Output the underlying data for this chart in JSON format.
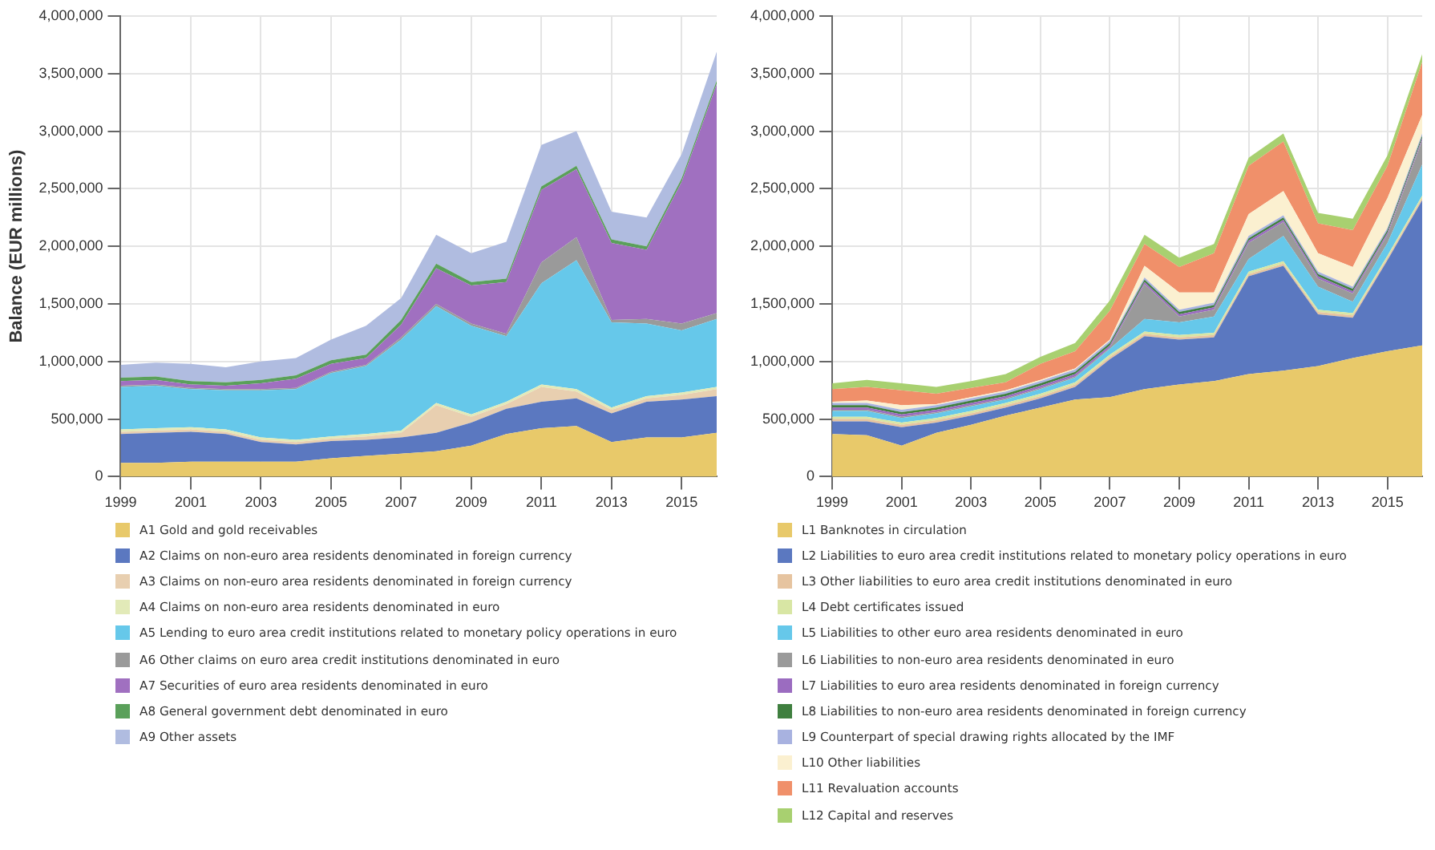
{
  "chart_data": [
    {
      "type": "area",
      "stacked": true,
      "ylabel": "Balance (EUR millions)",
      "x": [
        1999,
        2000,
        2001,
        2002,
        2003,
        2004,
        2005,
        2006,
        2007,
        2008,
        2009,
        2010,
        2011,
        2012,
        2013,
        2014,
        2015,
        2016
      ],
      "xlim": [
        1999,
        2016
      ],
      "xticks": [
        1999,
        2001,
        2003,
        2005,
        2007,
        2009,
        2011,
        2013,
        2015
      ],
      "ylim": [
        0,
        4000000
      ],
      "yticks": [
        {
          "value": 0,
          "label": "0"
        },
        {
          "value": 500000,
          "label": "500,000"
        },
        {
          "value": 1000000,
          "label": "1,000,000"
        },
        {
          "value": 1500000,
          "label": "1,500,000"
        },
        {
          "value": 2000000,
          "label": "2,000,000"
        },
        {
          "value": 2500000,
          "label": "2,500,000"
        },
        {
          "value": 3000000,
          "label": "3,000,000"
        },
        {
          "value": 3500000,
          "label": "3,500,000"
        },
        {
          "value": 4000000,
          "label": "4,000,000"
        }
      ],
      "grid": true,
      "legend": "bottom",
      "series": [
        {
          "name": "A1 Gold and gold receivables",
          "color": "#e8c96a",
          "values": [
            120000,
            120000,
            130000,
            130000,
            130000,
            130000,
            160000,
            180000,
            200000,
            220000,
            270000,
            370000,
            420000,
            440000,
            300000,
            340000,
            340000,
            380000
          ]
        },
        {
          "name": "A2 Claims on non-euro area residents denominated in foreign currency",
          "color": "#5b78c0",
          "values": [
            250000,
            260000,
            260000,
            240000,
            170000,
            150000,
            150000,
            140000,
            140000,
            160000,
            200000,
            220000,
            230000,
            240000,
            250000,
            310000,
            330000,
            320000
          ]
        },
        {
          "name": "A3 Claims on non-euro area residents denominated in foreign currency",
          "color": "#e8cfb0",
          "values": [
            20000,
            20000,
            20000,
            20000,
            20000,
            20000,
            20000,
            30000,
            40000,
            240000,
            50000,
            40000,
            130000,
            60000,
            30000,
            30000,
            40000,
            60000
          ]
        },
        {
          "name": "A4 Claims on non-euro area residents denominated in euro",
          "color": "#e2eab8",
          "values": [
            20000,
            20000,
            20000,
            20000,
            20000,
            20000,
            20000,
            20000,
            20000,
            20000,
            20000,
            20000,
            20000,
            20000,
            20000,
            20000,
            20000,
            20000
          ]
        },
        {
          "name": "A5 Lending to euro area credit institutions related to monetary policy operations in euro",
          "color": "#66c8ea",
          "values": [
            370000,
            370000,
            330000,
            340000,
            410000,
            440000,
            550000,
            590000,
            790000,
            840000,
            770000,
            570000,
            880000,
            1120000,
            740000,
            630000,
            540000,
            590000
          ]
        },
        {
          "name": "A6 Other claims on euro area credit institutions denominated in euro",
          "color": "#9a9a9a",
          "values": [
            10000,
            10000,
            10000,
            10000,
            10000,
            10000,
            10000,
            10000,
            20000,
            20000,
            20000,
            20000,
            180000,
            200000,
            20000,
            40000,
            60000,
            50000
          ]
        },
        {
          "name": "A7 Securities of euro area residents denominated in euro",
          "color": "#a070c0",
          "values": [
            40000,
            40000,
            30000,
            30000,
            50000,
            80000,
            70000,
            60000,
            110000,
            310000,
            330000,
            450000,
            630000,
            590000,
            670000,
            600000,
            1230000,
            1990000
          ]
        },
        {
          "name": "A8 General government debt denominated in euro",
          "color": "#5aa05a",
          "values": [
            30000,
            30000,
            30000,
            30000,
            30000,
            30000,
            30000,
            30000,
            40000,
            40000,
            30000,
            30000,
            30000,
            30000,
            30000,
            30000,
            30000,
            30000
          ]
        },
        {
          "name": "A9 Other assets",
          "color": "#b0bce0",
          "values": [
            110000,
            120000,
            150000,
            130000,
            160000,
            150000,
            180000,
            250000,
            190000,
            250000,
            250000,
            320000,
            360000,
            300000,
            240000,
            250000,
            210000,
            250000
          ]
        }
      ]
    },
    {
      "type": "area",
      "stacked": true,
      "x": [
        1999,
        2000,
        2001,
        2002,
        2003,
        2004,
        2005,
        2006,
        2007,
        2008,
        2009,
        2010,
        2011,
        2012,
        2013,
        2014,
        2015,
        2016
      ],
      "xlim": [
        1999,
        2016
      ],
      "xticks": [
        1999,
        2001,
        2003,
        2005,
        2007,
        2009,
        2011,
        2013,
        2015
      ],
      "ylim": [
        0,
        4000000
      ],
      "yticks": [
        {
          "value": 0,
          "label": "0"
        },
        {
          "value": 500000,
          "label": "500,000"
        },
        {
          "value": 1000000,
          "label": "1,000,000"
        },
        {
          "value": 1500000,
          "label": "1,500,000"
        },
        {
          "value": 2000000,
          "label": "2,000,000"
        },
        {
          "value": 2500000,
          "label": "2,500,000"
        },
        {
          "value": 3000000,
          "label": "3,000,000"
        },
        {
          "value": 3500000,
          "label": "3,500,000"
        },
        {
          "value": 4000000,
          "label": "4,000,000"
        }
      ],
      "grid": true,
      "legend": "bottom",
      "series": [
        {
          "name": "L1 Banknotes in circulation",
          "color": "#e8c96a",
          "values": [
            370000,
            360000,
            270000,
            380000,
            450000,
            530000,
            600000,
            670000,
            690000,
            760000,
            800000,
            830000,
            890000,
            920000,
            960000,
            1030000,
            1090000,
            1140000
          ]
        },
        {
          "name": "L2 Liabilities to euro area credit institutions related to monetary policy operations in euro",
          "color": "#5b78c0",
          "values": [
            110000,
            120000,
            160000,
            90000,
            80000,
            70000,
            80000,
            110000,
            330000,
            460000,
            390000,
            380000,
            850000,
            910000,
            450000,
            350000,
            790000,
            1260000
          ]
        },
        {
          "name": "L3 Other liabilities to euro area credit institutions denominated in euro",
          "color": "#e6c4a0",
          "values": [
            20000,
            20000,
            20000,
            20000,
            20000,
            20000,
            20000,
            20000,
            20000,
            20000,
            20000,
            20000,
            20000,
            20000,
            20000,
            20000,
            20000,
            20000
          ]
        },
        {
          "name": "L4 Debt certificates issued",
          "color": "#d8e6a4",
          "values": [
            20000,
            20000,
            20000,
            20000,
            20000,
            20000,
            20000,
            20000,
            20000,
            20000,
            20000,
            20000,
            20000,
            20000,
            20000,
            20000,
            20000,
            20000
          ]
        },
        {
          "name": "L5 Liabilities to other euro area residents denominated in euro",
          "color": "#66c8ea",
          "values": [
            50000,
            50000,
            40000,
            40000,
            40000,
            30000,
            40000,
            40000,
            50000,
            110000,
            110000,
            140000,
            110000,
            220000,
            200000,
            100000,
            110000,
            270000
          ]
        },
        {
          "name": "L6 Liabilities to non-euro area residents denominated in euro",
          "color": "#9a9a9a",
          "values": [
            10000,
            10000,
            10000,
            10000,
            10000,
            10000,
            10000,
            10000,
            10000,
            300000,
            50000,
            60000,
            140000,
            120000,
            70000,
            70000,
            70000,
            210000
          ]
        },
        {
          "name": "L7 Liabilities to euro area residents denominated in foreign currency",
          "color": "#9b6cc0",
          "values": [
            20000,
            20000,
            20000,
            20000,
            20000,
            20000,
            20000,
            20000,
            20000,
            20000,
            20000,
            20000,
            20000,
            20000,
            20000,
            20000,
            20000,
            20000
          ]
        },
        {
          "name": "L8 Liabilities to non-euro area residents denominated in foreign currency",
          "color": "#3f7f3f",
          "values": [
            20000,
            20000,
            20000,
            20000,
            20000,
            20000,
            20000,
            20000,
            20000,
            20000,
            20000,
            20000,
            20000,
            20000,
            20000,
            20000,
            20000,
            20000
          ]
        },
        {
          "name": "L9 Counterpart of special drawing rights allocated by the IMF",
          "color": "#a8b2e0",
          "values": [
            20000,
            20000,
            20000,
            20000,
            20000,
            20000,
            20000,
            20000,
            20000,
            20000,
            20000,
            20000,
            20000,
            20000,
            20000,
            20000,
            20000,
            20000
          ]
        },
        {
          "name": "L10 Other liabilities",
          "color": "#fbf0d0",
          "values": [
            10000,
            20000,
            40000,
            10000,
            10000,
            10000,
            10000,
            10000,
            10000,
            100000,
            150000,
            90000,
            190000,
            210000,
            160000,
            170000,
            260000,
            160000
          ]
        },
        {
          "name": "L11 Revaluation accounts",
          "color": "#f0906a",
          "values": [
            110000,
            120000,
            130000,
            90000,
            80000,
            70000,
            140000,
            150000,
            250000,
            190000,
            220000,
            340000,
            420000,
            430000,
            260000,
            320000,
            280000,
            460000
          ]
        },
        {
          "name": "L12 Capital and reserves",
          "color": "#a8d070",
          "values": [
            50000,
            60000,
            60000,
            60000,
            60000,
            70000,
            60000,
            70000,
            90000,
            80000,
            80000,
            80000,
            70000,
            70000,
            90000,
            100000,
            90000,
            70000
          ]
        }
      ]
    }
  ]
}
